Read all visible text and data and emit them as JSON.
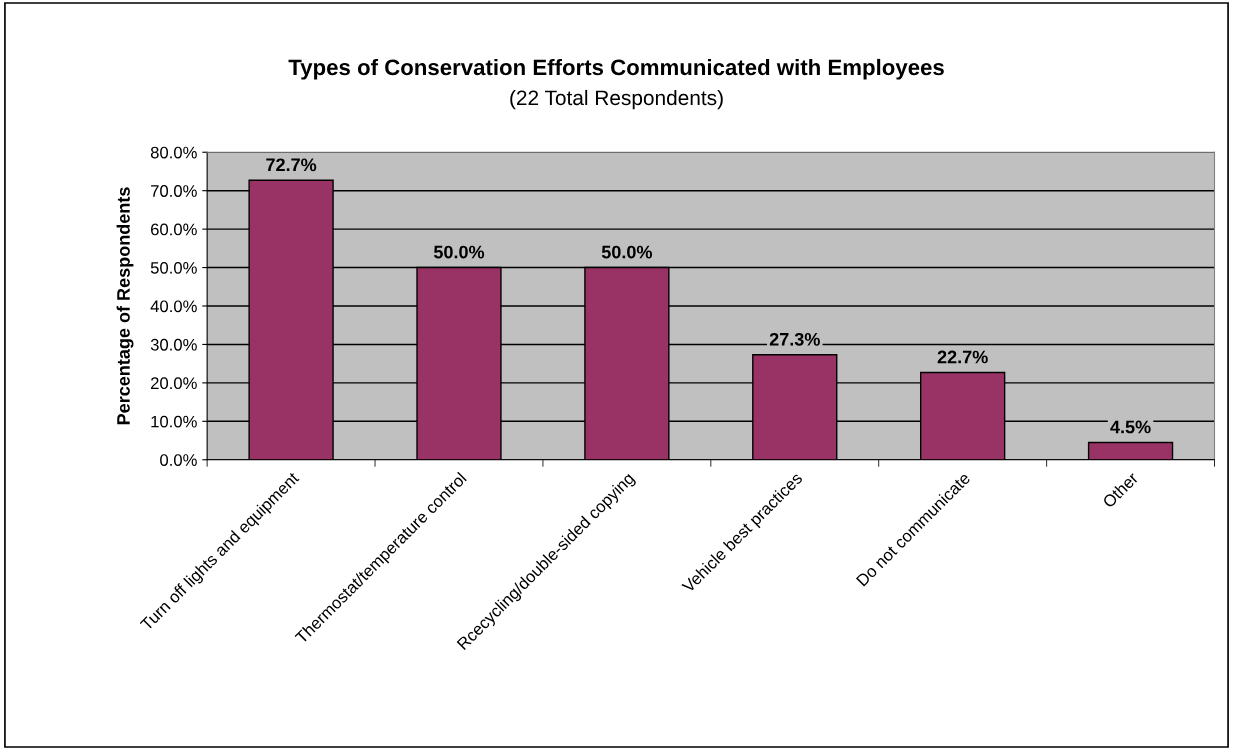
{
  "chart_data": {
    "type": "bar",
    "title": "Types of Conservation Efforts Communicated with Employees",
    "subtitle": "(22 Total Respondents)",
    "ylabel": "Percentage of Respondents",
    "categories": [
      "Turn off lights and equipment",
      "Thermostat/temperature control",
      "Rcecycling/double-sided copying",
      "Vehicle best practices",
      "Do not communicate",
      "Other"
    ],
    "values": [
      72.7,
      50.0,
      50.0,
      27.3,
      22.7,
      4.5
    ],
    "value_labels": [
      "72.7%",
      "50.0%",
      "50.0%",
      "27.3%",
      "22.7%",
      "4.5%"
    ],
    "color": "#993366",
    "ylim": [
      0,
      80
    ],
    "yticks": [
      {
        "value": 0,
        "label": "0.0%"
      },
      {
        "value": 10,
        "label": "10.0%"
      },
      {
        "value": 20,
        "label": "20.0%"
      },
      {
        "value": 30,
        "label": "30.0%"
      },
      {
        "value": 40,
        "label": "40.0%"
      },
      {
        "value": 50,
        "label": "50.0%"
      },
      {
        "value": 60,
        "label": "60.0%"
      },
      {
        "value": 70,
        "label": "70.0%"
      },
      {
        "value": 80,
        "label": "80.0%"
      }
    ],
    "grid": "y",
    "legend": false
  }
}
